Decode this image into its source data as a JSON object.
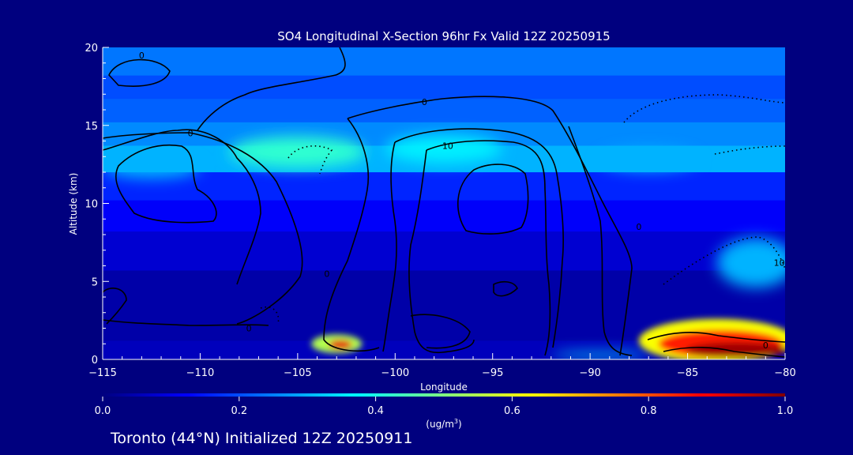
{
  "chart_data": {
    "type": "heatmap",
    "title": "SO4 Longitudinal X-Section 96hr  Fx Valid 12Z 20250915",
    "xlabel": "Longitude",
    "ylabel": "Altitude (km)",
    "xlim": [
      -115,
      -80
    ],
    "ylim": [
      0,
      20
    ],
    "x_ticks": [
      -115,
      -110,
      -105,
      -100,
      -95,
      -90,
      -85,
      -80
    ],
    "x_tick_labels": [
      "−115",
      "−110",
      "−105",
      "−100",
      "−95",
      "−90",
      "−85",
      "−80"
    ],
    "y_ticks": [
      0,
      5,
      10,
      15,
      20
    ],
    "y_tick_labels": [
      "0",
      "5",
      "10",
      "15",
      "20"
    ],
    "colorbar": {
      "range": [
        0.0,
        1.0
      ],
      "ticks": [
        0.0,
        0.2,
        0.4,
        0.6,
        0.8,
        1.0
      ],
      "tick_labels": [
        "0.0",
        "0.2",
        "0.4",
        "0.6",
        "0.8",
        "1.0"
      ],
      "unit_label": "(ug/m",
      "unit_sup": "3",
      "unit_close": ")",
      "colormap": [
        "#00007f",
        "#0000ff",
        "#0080ff",
        "#00ffff",
        "#80ff80",
        "#ffff00",
        "#ff8000",
        "#ff0000",
        "#7f0000"
      ]
    },
    "background_levels": [
      {
        "alt_from": 0,
        "alt_to": 1.5,
        "value": 0.06
      },
      {
        "alt_from": 1.5,
        "alt_to": 6,
        "value": 0.04
      },
      {
        "alt_from": 6,
        "alt_to": 8.5,
        "value": 0.08
      },
      {
        "alt_from": 8.5,
        "alt_to": 10.5,
        "value": 0.12
      },
      {
        "alt_from": 10.5,
        "alt_to": 12.3,
        "value": 0.16
      },
      {
        "alt_from": 12.3,
        "alt_to": 14,
        "value": 0.3
      },
      {
        "alt_from": 14,
        "alt_to": 15.5,
        "value": 0.26
      },
      {
        "alt_from": 15.5,
        "alt_to": 17,
        "value": 0.22
      },
      {
        "alt_from": 17,
        "alt_to": 18.5,
        "value": 0.2
      },
      {
        "alt_from": 18.5,
        "alt_to": 20,
        "value": 0.24
      }
    ],
    "features": [
      {
        "lon": -105,
        "alt": 13.3,
        "rx": 3.5,
        "ry": 1.0,
        "value": 0.42
      },
      {
        "lon": -97.5,
        "alt": 13.5,
        "rx": 3.0,
        "ry": 0.9,
        "value": 0.36
      },
      {
        "lon": -112.5,
        "alt": 12.3,
        "rx": 2.5,
        "ry": 0.7,
        "value": 0.3
      },
      {
        "lon": -87,
        "alt": 12.8,
        "rx": 2.5,
        "ry": 0.7,
        "value": 0.3
      },
      {
        "lon": -81.5,
        "alt": 6.2,
        "rx": 2.0,
        "ry": 1.6,
        "value": 0.3
      },
      {
        "lon": -103.0,
        "alt": 1.0,
        "rx": 1.3,
        "ry": 0.6,
        "value": 0.55
      },
      {
        "lon": -102.8,
        "alt": 0.95,
        "rx": 0.6,
        "ry": 0.3,
        "value": 0.9
      },
      {
        "lon": -83.5,
        "alt": 1.2,
        "rx": 4.0,
        "ry": 1.4,
        "value": 0.62
      },
      {
        "lon": -83.3,
        "alt": 1.0,
        "rx": 3.2,
        "ry": 0.9,
        "value": 0.85
      },
      {
        "lon": -82.5,
        "alt": 0.6,
        "rx": 2.6,
        "ry": 0.5,
        "value": 0.97
      },
      {
        "lon": -89.5,
        "alt": 0.25,
        "rx": 2.5,
        "ry": 0.2,
        "value": 0.35
      }
    ],
    "contour_labels": [
      {
        "text": "0",
        "lon": -113.0,
        "alt": 19.5
      },
      {
        "text": "0",
        "lon": -110.5,
        "alt": 14.5
      },
      {
        "text": "0",
        "lon": -98.5,
        "alt": 16.5
      },
      {
        "text": "10",
        "lon": -97.3,
        "alt": 13.7
      },
      {
        "text": "0",
        "lon": -107.5,
        "alt": 2.0
      },
      {
        "text": "0",
        "lon": -103.5,
        "alt": 5.5
      },
      {
        "text": "0",
        "lon": -87.5,
        "alt": 8.5
      },
      {
        "text": "10",
        "lon": -80.3,
        "alt": 6.2
      },
      {
        "text": "0",
        "lon": -81.0,
        "alt": 0.9
      }
    ]
  },
  "footer": {
    "caption": "Toronto (44°N) Initialized 12Z 20250911"
  }
}
